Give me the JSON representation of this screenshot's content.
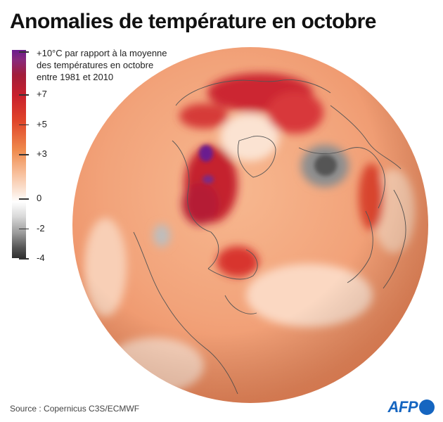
{
  "title": "Anomalies de température en octobre",
  "legend": {
    "caption": [
      "+10°C par rapport à la moyenne",
      "des températures en octobre",
      "entre 1981 et 2010"
    ],
    "ticks": [
      {
        "label": "+7",
        "value": 7
      },
      {
        "label": "+5",
        "value": 5
      },
      {
        "label": "+3",
        "value": 3
      },
      {
        "label": "0",
        "value": 0
      },
      {
        "label": "-2",
        "value": -2
      },
      {
        "label": "-4",
        "value": -4
      }
    ],
    "scale_max": 10,
    "scale_min": -4
  },
  "colors": {
    "scale_top": "#6a1b8f",
    "strong_warm": "#c9202c",
    "warm": "#ef8a4c",
    "neutral": "#ffffff",
    "cold": "#555555",
    "afp_blue": "#1565c0"
  },
  "source": "Source : Copernicus C3S/ECMWF",
  "logo": "AFP"
}
